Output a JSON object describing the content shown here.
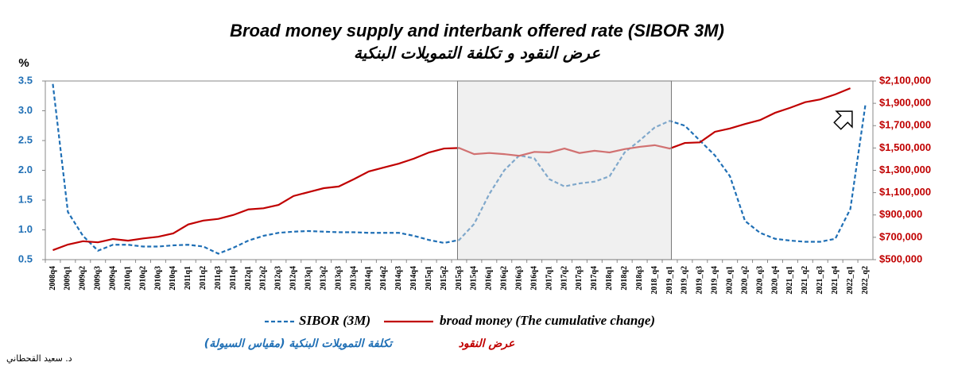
{
  "chart_data": {
    "type": "line",
    "title": "Broad money supply and interbank offered rate (SIBOR  3M)",
    "subtitle": "عرض النقود و تكلفة التمويلات البنكية",
    "y_label": "%",
    "source": "د. سعيد القحطاني",
    "categories": [
      "2008q4",
      "2009q1",
      "2009q2",
      "2009q3",
      "2009q4",
      "2010q1",
      "2010q2",
      "2010q3",
      "2010q4",
      "2011q1",
      "2011q2",
      "2011q3",
      "2011q4",
      "2012q1",
      "2012q2",
      "2012q3",
      "2012q4",
      "2013q1",
      "2013q2",
      "2013q3",
      "2013q4",
      "2014q1",
      "2014q2",
      "2014q3",
      "2014q4",
      "2015q1",
      "2015q2",
      "2015q3",
      "2015q4",
      "2016q1",
      "2016q2",
      "2016q3",
      "2016q4",
      "2017q1",
      "2017q2",
      "2017q3",
      "2017q4",
      "2018q1",
      "2018q2",
      "2018q3",
      "2018_q4",
      "2019_q1",
      "2019_q2",
      "2019_q3",
      "2019_q4",
      "2020_q1",
      "2020_q2",
      "2020_q3",
      "2020_q4",
      "2021_q1",
      "2021_q2",
      "2021_q3",
      "2021_q4",
      "2022_q1",
      "2022_q2"
    ],
    "ylim": [
      0.5,
      3.5
    ],
    "yticks": [
      0.5,
      {
        "value": 1,
        "label": "1.0"
      },
      1.5,
      {
        "value": 2,
        "label": "2.0"
      },
      2.5,
      {
        "value": 3,
        "label": "3.0"
      },
      3.5
    ],
    "y2lim": [
      500000,
      2100000
    ],
    "y2ticks": [
      {
        "value": 500000,
        "label": "$500,000"
      },
      {
        "value": 700000,
        "label": "$700,000"
      },
      {
        "value": 900000,
        "label": "$900,000"
      },
      {
        "value": 1100000,
        "label": "$1,100,000"
      },
      {
        "value": 1300000,
        "label": "$1,300,000"
      },
      {
        "value": 1500000,
        "label": "$1,500,000"
      },
      {
        "value": 1700000,
        "label": "$1,700,000"
      },
      {
        "value": 1900000,
        "label": "$1,900,000"
      },
      {
        "value": 2100000,
        "label": "$2,100,000"
      }
    ],
    "series": [
      {
        "name": "SIBOR (3M)",
        "label_ar": "تكلفة التمويلات البنكية (مقياس السيولة)",
        "color": "#1f6fb5",
        "dashed": true,
        "values": [
          3.45,
          1.3,
          0.9,
          0.65,
          0.75,
          0.75,
          0.72,
          0.72,
          0.74,
          0.75,
          0.72,
          0.6,
          0.7,
          0.82,
          0.9,
          0.95,
          0.97,
          0.98,
          0.97,
          0.96,
          0.96,
          0.95,
          0.95,
          0.95,
          0.9,
          0.83,
          0.78,
          0.83,
          1.1,
          1.6,
          2.0,
          2.25,
          2.2,
          1.85,
          1.73,
          1.78,
          1.81,
          1.9,
          2.3,
          2.5,
          2.72,
          2.83,
          2.75,
          2.5,
          2.25,
          1.9,
          1.15,
          0.95,
          0.85,
          0.82,
          0.8,
          0.8,
          0.85,
          1.35,
          3.1
        ]
      },
      {
        "name": "broad money (The cumulative change)",
        "label_ar": "عرض النقود",
        "color": "#c00000",
        "dashed": false,
        "axis": "y2",
        "values": [
          585000,
          635000,
          665000,
          655000,
          685000,
          670000,
          690000,
          705000,
          735000,
          815000,
          850000,
          865000,
          900000,
          950000,
          960000,
          990000,
          1070000,
          1105000,
          1140000,
          1155000,
          1220000,
          1290000,
          1325000,
          1360000,
          1405000,
          1460000,
          1495000,
          1500000,
          1445000,
          1455000,
          1445000,
          1430000,
          1465000,
          1460000,
          1495000,
          1455000,
          1475000,
          1460000,
          1490000,
          1510000,
          1525000,
          1495000,
          1545000,
          1550000,
          1645000,
          1675000,
          1715000,
          1750000,
          1815000,
          1860000,
          1910000,
          1935000,
          1980000,
          2035000,
          null
        ]
      }
    ]
  }
}
